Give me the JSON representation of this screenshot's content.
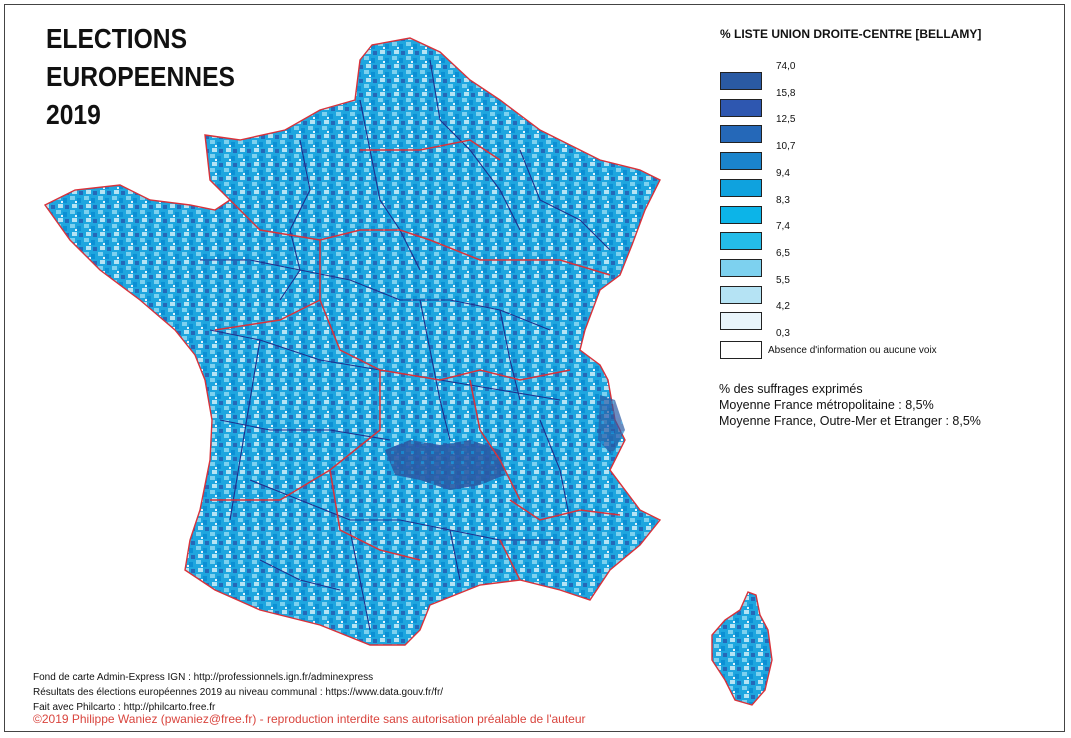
{
  "title": {
    "line1": "ELECTIONS",
    "line2": "EUROPEENNES",
    "line3": "2019"
  },
  "legend": {
    "title": "% LISTE UNION DROITE-CENTRE [BELLAMY]",
    "classes": [
      {
        "value": "74,0",
        "color": "#2a5aa3"
      },
      {
        "value": "15,8",
        "color": "#2e57b0"
      },
      {
        "value": "12,5",
        "color": "#2568b8"
      },
      {
        "value": "10,7",
        "color": "#1a84cc"
      },
      {
        "value": "9,4",
        "color": "#0fa2de"
      },
      {
        "value": "8,3",
        "color": "#0cb4e8"
      },
      {
        "value": "7,4",
        "color": "#24bce9"
      },
      {
        "value": "6,5",
        "color": "#7dd1ef"
      },
      {
        "value": "5,5",
        "color": "#b5e3f4"
      },
      {
        "value": "4,2",
        "color": "#e9f5fb"
      }
    ],
    "last_value": "0,3",
    "no_info_label": "Absence d'information ou aucune voix",
    "no_info_color": "#ffffff"
  },
  "stats": {
    "line1": "% des suffrages exprimés",
    "line2": "Moyenne France métropolitaine : 8,5%",
    "line3": "Moyenne France, Outre-Mer et Etranger : 8,5%"
  },
  "sources": {
    "line1": "Fond de carte Admin-Express IGN : http://professionnels.ign.fr/adminexpress",
    "line2": "Résultats des élections européennes 2019 au niveau communal : https://www.data.gouv.fr/fr/",
    "line3": "Fait avec Philcarto : http://philcarto.free.fr"
  },
  "copyright": "©2019 Philippe Waniez (pwaniez@free.fr) - reproduction interdite sans autorisation préalable de l'auteur",
  "colors": {
    "region_border": "#d9323a",
    "department_border": "#1e2f8c",
    "map_base": "#1ea6df"
  }
}
